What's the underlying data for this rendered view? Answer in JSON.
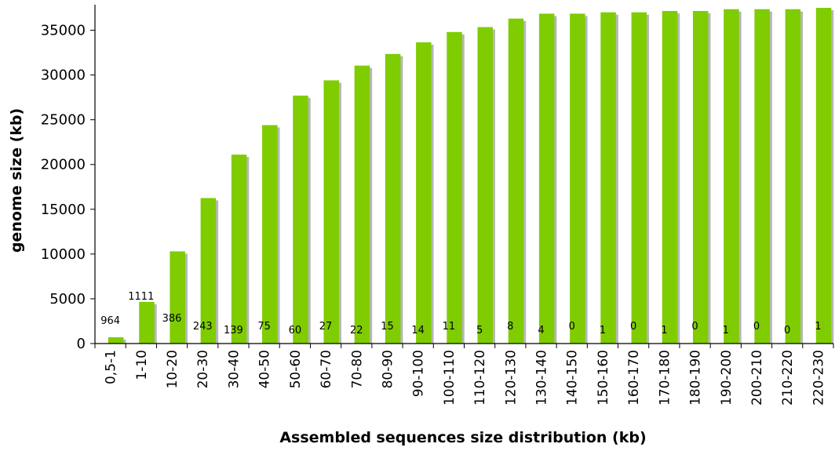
{
  "chart_data": {
    "type": "bar",
    "xlabel": "Assembled sequences size distribution (kb)",
    "ylabel": "genome size (kb)",
    "ylim": [
      0,
      37500
    ],
    "yticks": [
      0,
      5000,
      10000,
      15000,
      20000,
      25000,
      30000,
      35000
    ],
    "grid": false,
    "categories": [
      "0,5-1",
      "1-10",
      "10-20",
      "20-30",
      "30-40",
      "40-50",
      "50-60",
      "60-70",
      "70-80",
      "80-90",
      "90-100",
      "100-110",
      "110-120",
      "120-130",
      "130-140",
      "140-150",
      "150-160",
      "160-170",
      "170-180",
      "180-190",
      "190-200",
      "200-210",
      "210-220",
      "220-230"
    ],
    "values": [
      700,
      4650,
      10300,
      16250,
      21100,
      24400,
      27700,
      29400,
      31050,
      32350,
      33650,
      34800,
      35350,
      36300,
      36850,
      36850,
      37000,
      37000,
      37150,
      37150,
      37350,
      37350,
      37350,
      37500
    ],
    "data_labels": [
      "964",
      "1111",
      "386",
      "243",
      "139",
      "75",
      "60",
      "27",
      "22",
      "15",
      "14",
      "11",
      "5",
      "8",
      "4",
      "0",
      "1",
      "0",
      "1",
      "0",
      "1",
      "0",
      "0",
      "1"
    ],
    "colors": {
      "bar": "#7fcc00",
      "shadow": "#b7b7b7",
      "axis": "#000000"
    }
  }
}
